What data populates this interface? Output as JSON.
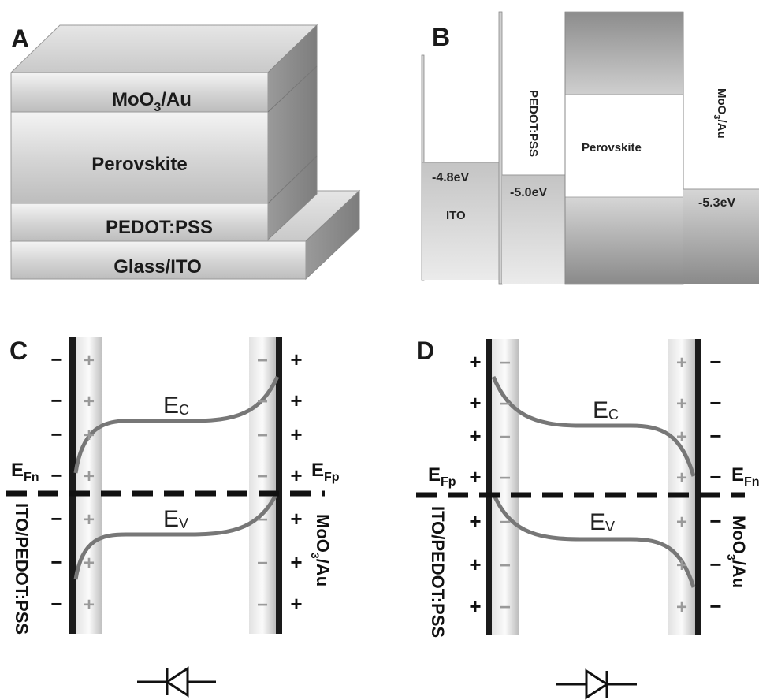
{
  "panels": {
    "a": "A",
    "b": "B",
    "c": "C",
    "d": "D"
  },
  "panel_a": {
    "layers": {
      "top": "MoO3/Au",
      "perovskite": "Perovskite",
      "pedot": "PEDOT:PSS",
      "glass": "Glass/ITO"
    }
  },
  "panel_b": {
    "labels": {
      "ito": "ITO",
      "pedot": "PEDOT:PSS",
      "perovskite": "Perovskite",
      "moo3": "MoO3/Au"
    },
    "levels": {
      "ito": "-4.8eV",
      "pedot": "-5.0eV",
      "moo3": "-5.3eV"
    }
  },
  "panel_c": {
    "ec": "Ec",
    "ev": "Ev",
    "fermi_left": "EFn",
    "fermi_right": "EFp",
    "left_label": "ITO/PEDOT:PSS",
    "right_label": "MoO3/Au",
    "outer_left_signs": [
      "−",
      "−",
      "−",
      "−",
      "−",
      "−",
      "−"
    ],
    "inner_left_signs": [
      "+",
      "+",
      "+",
      "+",
      "+",
      "+",
      "+"
    ],
    "inner_right_signs": [
      "−",
      "−",
      "−",
      "−",
      "−",
      "−",
      "−"
    ],
    "outer_right_signs": [
      "+",
      "+",
      "+",
      "+",
      "+",
      "+",
      "+"
    ]
  },
  "panel_d": {
    "ec": "Ec",
    "ev": "Ev",
    "fermi_left": "EFp",
    "fermi_right": "EFn",
    "left_label": "ITO/PEDOT:PSS",
    "right_label": "MoO3/Au",
    "outer_left_signs": [
      "+",
      "+",
      "+",
      "+",
      "+",
      "+",
      "+"
    ],
    "inner_left_signs": [
      "−",
      "−",
      "−",
      "−",
      "−",
      "−",
      "−"
    ],
    "inner_right_signs": [
      "+",
      "+",
      "+",
      "+",
      "+",
      "+",
      "+"
    ],
    "outer_right_signs": [
      "−",
      "−",
      "−",
      "−",
      "−",
      "−",
      "−"
    ]
  }
}
